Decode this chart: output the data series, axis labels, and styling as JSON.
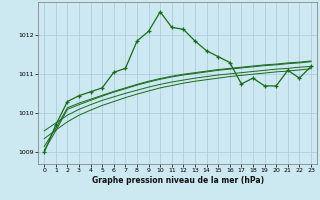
{
  "xlabel": "Graphe pression niveau de la mer (hPa)",
  "bg_color": "#cce8f0",
  "grid_color": "#aac8d8",
  "line_color": "#1a6b1a",
  "xlim": [
    -0.5,
    23.5
  ],
  "ylim": [
    1008.7,
    1012.85
  ],
  "yticks": [
    1009,
    1010,
    1011,
    1012
  ],
  "xticks": [
    0,
    1,
    2,
    3,
    4,
    5,
    6,
    7,
    8,
    9,
    10,
    11,
    12,
    13,
    14,
    15,
    16,
    17,
    18,
    19,
    20,
    21,
    22,
    23
  ],
  "main_line": [
    1009.0,
    1009.7,
    1010.3,
    1010.45,
    1010.55,
    1010.65,
    1011.05,
    1011.15,
    1011.85,
    1012.1,
    1012.6,
    1012.2,
    1012.15,
    1011.85,
    1011.6,
    1011.45,
    1011.3,
    1010.75,
    1010.9,
    1010.7,
    1010.7,
    1011.1,
    1010.9,
    1011.2
  ],
  "smooth_line1": [
    1009.05,
    1009.55,
    1010.1,
    1010.22,
    1010.33,
    1010.44,
    1010.54,
    1010.63,
    1010.72,
    1010.8,
    1010.87,
    1010.93,
    1010.98,
    1011.02,
    1011.06,
    1011.1,
    1011.13,
    1011.16,
    1011.19,
    1011.22,
    1011.24,
    1011.27,
    1011.29,
    1011.32
  ],
  "smooth_line2": [
    1009.15,
    1009.62,
    1010.14,
    1010.26,
    1010.36,
    1010.46,
    1010.56,
    1010.65,
    1010.74,
    1010.82,
    1010.89,
    1010.95,
    1011.0,
    1011.04,
    1011.08,
    1011.12,
    1011.15,
    1011.18,
    1011.21,
    1011.24,
    1011.26,
    1011.29,
    1011.31,
    1011.34
  ],
  "smooth_line3": [
    1009.55,
    1009.75,
    1009.95,
    1010.1,
    1010.22,
    1010.33,
    1010.42,
    1010.51,
    1010.59,
    1010.67,
    1010.74,
    1010.8,
    1010.85,
    1010.9,
    1010.94,
    1010.98,
    1011.01,
    1011.04,
    1011.07,
    1011.1,
    1011.13,
    1011.15,
    1011.18,
    1011.2
  ],
  "smooth_line4": [
    1009.35,
    1009.57,
    1009.78,
    1009.95,
    1010.08,
    1010.2,
    1010.3,
    1010.4,
    1010.49,
    1010.57,
    1010.65,
    1010.71,
    1010.77,
    1010.82,
    1010.86,
    1010.9,
    1010.94,
    1010.97,
    1011.0,
    1011.03,
    1011.06,
    1011.08,
    1011.11,
    1011.14
  ]
}
